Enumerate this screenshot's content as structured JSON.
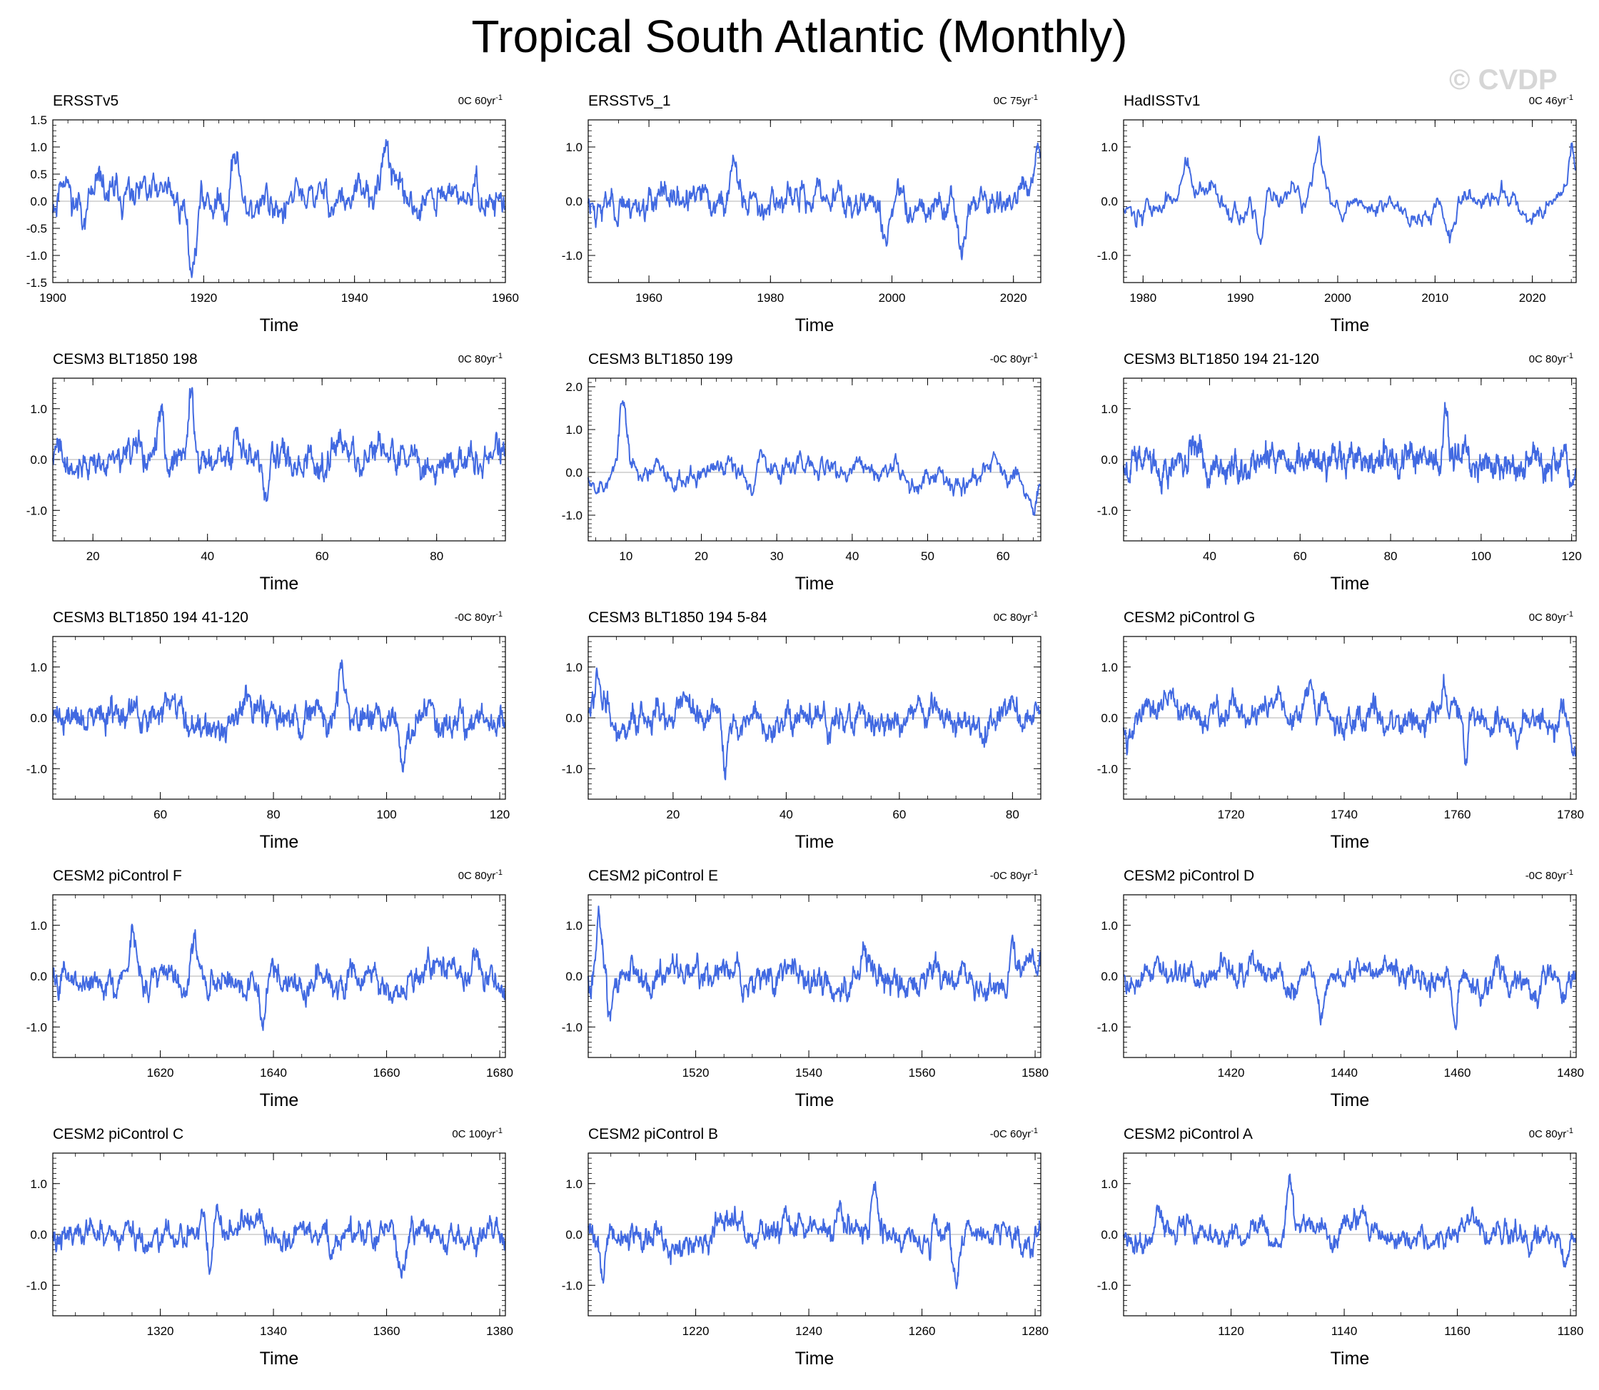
{
  "title": "Tropical South Atlantic (Monthly)",
  "watermark": "© CVDP",
  "line_color": "#4169e1",
  "chart_data": [
    {
      "type": "line",
      "title": "ERSSTv5",
      "note": "0C 60yr",
      "note_sup": "-1",
      "xlabel": "Time",
      "xlim": [
        1900,
        1960
      ],
      "xticks": [
        1900,
        1920,
        1940,
        1960
      ],
      "xtick_labels": [
        "1900",
        "1920",
        "1940",
        "1960"
      ],
      "ylim": [
        -1.5,
        1.5
      ],
      "yticks": [
        1.5,
        1.0,
        0.5,
        0.0,
        -0.5,
        -1.0,
        -1.5
      ],
      "ytick_labels": [
        "1.5",
        "1.0",
        "0.5",
        "0.0",
        "-0.5",
        "-1.0",
        "-1.5"
      ],
      "seed": 11,
      "amp": 0.45,
      "rho": 0.9,
      "bumps": [
        [
          1918.5,
          -1.4
        ],
        [
          1924,
          1.2
        ],
        [
          1944.3,
          1.35
        ],
        [
          1901.5,
          0.8
        ]
      ]
    },
    {
      "type": "line",
      "title": "ERSSTv5_1",
      "note": "0C 75yr",
      "note_sup": "-1",
      "xlabel": "Time",
      "xlim": [
        1950,
        2024.5
      ],
      "xticks": [
        1960,
        1980,
        2000,
        2020
      ],
      "xtick_labels": [
        "1960",
        "1980",
        "2000",
        "2020"
      ],
      "ylim": [
        -1.5,
        1.5
      ],
      "yticks": [
        1.0,
        0.0,
        -1.0
      ],
      "ytick_labels": [
        "1.0",
        "0.0",
        "-1.0"
      ],
      "seed": 23,
      "amp": 0.35,
      "rho": 0.9,
      "bumps": [
        [
          1974,
          0.95
        ],
        [
          2024,
          1.0
        ],
        [
          1999,
          -1.0
        ],
        [
          2011.5,
          -0.95
        ]
      ]
    },
    {
      "type": "line",
      "title": "HadISSTv1",
      "note": "0C 46yr",
      "note_sup": "-1",
      "xlabel": "Time",
      "xlim": [
        1978,
        2024.5
      ],
      "xticks": [
        1980,
        1990,
        2000,
        2010,
        2020
      ],
      "xtick_labels": [
        "1980",
        "1990",
        "2000",
        "2010",
        "2020"
      ],
      "ylim": [
        -1.5,
        1.5
      ],
      "yticks": [
        1.0,
        0.0,
        -1.0
      ],
      "ytick_labels": [
        "1.0",
        "0.0",
        "-1.0"
      ],
      "seed": 37,
      "amp": 0.3,
      "rho": 0.93,
      "bumps": [
        [
          1998,
          0.8
        ],
        [
          1992,
          -0.9
        ],
        [
          2011.5,
          -0.9
        ],
        [
          2024,
          1.0
        ],
        [
          1984.5,
          0.7
        ]
      ]
    },
    {
      "type": "line",
      "title": "CESM3 BLT1850 198",
      "note": "0C 80yr",
      "note_sup": "-1",
      "xlabel": "Time",
      "xlim": [
        13,
        92
      ],
      "xticks": [
        20,
        40,
        60,
        80
      ],
      "xtick_labels": [
        "20",
        "40",
        "60",
        "80"
      ],
      "ylim": [
        -1.6,
        1.6
      ],
      "yticks": [
        1.0,
        0.0,
        -1.0
      ],
      "ytick_labels": [
        "1.0",
        "0.0",
        "-1.0"
      ],
      "seed": 41,
      "amp": 0.42,
      "rho": 0.9,
      "bumps": [
        [
          37.2,
          1.5
        ],
        [
          32,
          1.2
        ],
        [
          50,
          -1.0
        ]
      ]
    },
    {
      "type": "line",
      "title": "CESM3 BLT1850 199",
      "note": "-0C 80yr",
      "note_sup": "-1",
      "xlabel": "Time",
      "xlim": [
        5,
        65
      ],
      "xticks": [
        10,
        20,
        30,
        40,
        50,
        60
      ],
      "xtick_labels": [
        "10",
        "20",
        "30",
        "40",
        "50",
        "60"
      ],
      "ylim": [
        -1.6,
        2.2
      ],
      "yticks": [
        2.0,
        1.0,
        0.0,
        -1.0
      ],
      "ytick_labels": [
        "2.0",
        "1.0",
        "0.0",
        "-1.0"
      ],
      "seed": 53,
      "amp": 0.35,
      "rho": 0.93,
      "bumps": [
        [
          9.6,
          1.8
        ],
        [
          64,
          -1.0
        ],
        [
          28,
          0.9
        ]
      ]
    },
    {
      "type": "line",
      "title": "CESM3 BLT1850 194 21-120",
      "note": "0C 80yr",
      "note_sup": "-1",
      "xlabel": "Time",
      "xlim": [
        21,
        121
      ],
      "xticks": [
        40,
        60,
        80,
        100,
        120
      ],
      "xtick_labels": [
        "40",
        "60",
        "80",
        "100",
        "120"
      ],
      "ylim": [
        -1.6,
        1.6
      ],
      "yticks": [
        1.0,
        0.0,
        -1.0
      ],
      "ytick_labels": [
        "1.0",
        "0.0",
        "-1.0"
      ],
      "seed": 67,
      "amp": 0.42,
      "rho": 0.88,
      "bumps": [
        [
          92,
          1.1
        ],
        [
          120,
          -0.9
        ]
      ]
    },
    {
      "type": "line",
      "title": "CESM3 BLT1850 194 41-120",
      "note": "-0C 80yr",
      "note_sup": "-1",
      "xlabel": "Time",
      "xlim": [
        41,
        121
      ],
      "xticks": [
        60,
        80,
        100,
        120
      ],
      "xtick_labels": [
        "60",
        "80",
        "100",
        "120"
      ],
      "ylim": [
        -1.6,
        1.6
      ],
      "yticks": [
        1.0,
        0.0,
        -1.0
      ],
      "ytick_labels": [
        "1.0",
        "0.0",
        "-1.0"
      ],
      "seed": 71,
      "amp": 0.42,
      "rho": 0.88,
      "bumps": [
        [
          92,
          1.15
        ],
        [
          103,
          -1.0
        ]
      ]
    },
    {
      "type": "line",
      "title": "CESM3 BLT1850 194 5-84",
      "note": "0C 80yr",
      "note_sup": "-1",
      "xlabel": "Time",
      "xlim": [
        5,
        85
      ],
      "xticks": [
        20,
        40,
        60,
        80
      ],
      "xtick_labels": [
        "20",
        "40",
        "60",
        "80"
      ],
      "ylim": [
        -1.6,
        1.6
      ],
      "yticks": [
        1.0,
        0.0,
        -1.0
      ],
      "ytick_labels": [
        "1.0",
        "0.0",
        "-1.0"
      ],
      "seed": 83,
      "amp": 0.4,
      "rho": 0.9,
      "bumps": [
        [
          6.5,
          1.05
        ],
        [
          29,
          -1.05
        ]
      ]
    },
    {
      "type": "line",
      "title": "CESM2 piControl G",
      "note": "0C 80yr",
      "note_sup": "-1",
      "xlabel": "Time",
      "xlim": [
        1701,
        1781
      ],
      "xticks": [
        1720,
        1740,
        1760,
        1780
      ],
      "xtick_labels": [
        "1720",
        "1740",
        "1760",
        "1780"
      ],
      "ylim": [
        -1.6,
        1.6
      ],
      "yticks": [
        1.0,
        0.0,
        -1.0
      ],
      "ytick_labels": [
        "1.0",
        "0.0",
        "-1.0"
      ],
      "seed": 97,
      "amp": 0.38,
      "rho": 0.93,
      "bumps": [
        [
          1757.5,
          1.0
        ],
        [
          1761.5,
          -1.1
        ],
        [
          1780.5,
          -0.9
        ]
      ]
    },
    {
      "type": "line",
      "title": "CESM2 piControl F",
      "note": "0C 80yr",
      "note_sup": "-1",
      "xlabel": "Time",
      "xlim": [
        1601,
        1681
      ],
      "xticks": [
        1620,
        1640,
        1660,
        1680
      ],
      "xtick_labels": [
        "1620",
        "1640",
        "1660",
        "1680"
      ],
      "ylim": [
        -1.6,
        1.6
      ],
      "yticks": [
        1.0,
        0.0,
        -1.0
      ],
      "ytick_labels": [
        "1.0",
        "0.0",
        "-1.0"
      ],
      "seed": 101,
      "amp": 0.38,
      "rho": 0.93,
      "bumps": [
        [
          1615,
          0.95
        ],
        [
          1626,
          0.95
        ],
        [
          1638,
          -0.9
        ]
      ]
    },
    {
      "type": "line",
      "title": "CESM2 piControl E",
      "note": "-0C 80yr",
      "note_sup": "-1",
      "xlabel": "Time",
      "xlim": [
        1501,
        1581
      ],
      "xticks": [
        1520,
        1540,
        1560,
        1580
      ],
      "xtick_labels": [
        "1520",
        "1540",
        "1560",
        "1580"
      ],
      "ylim": [
        -1.6,
        1.6
      ],
      "yticks": [
        1.0,
        0.0,
        -1.0
      ],
      "ytick_labels": [
        "1.0",
        "0.0",
        "-1.0"
      ],
      "seed": 113,
      "amp": 0.4,
      "rho": 0.93,
      "bumps": [
        [
          1503,
          1.35
        ],
        [
          1576,
          1.2
        ],
        [
          1505,
          -0.9
        ]
      ]
    },
    {
      "type": "line",
      "title": "CESM2 piControl D",
      "note": "-0C 80yr",
      "note_sup": "-1",
      "xlabel": "Time",
      "xlim": [
        1401,
        1481
      ],
      "xticks": [
        1420,
        1440,
        1460,
        1480
      ],
      "xtick_labels": [
        "1420",
        "1440",
        "1460",
        "1480"
      ],
      "ylim": [
        -1.6,
        1.6
      ],
      "yticks": [
        1.0,
        0.0,
        -1.0
      ],
      "ytick_labels": [
        "1.0",
        "0.0",
        "-1.0"
      ],
      "seed": 127,
      "amp": 0.33,
      "rho": 0.93,
      "bumps": [
        [
          1459.5,
          -1.2
        ],
        [
          1436,
          -0.95
        ]
      ]
    },
    {
      "type": "line",
      "title": "CESM2 piControl C",
      "note": "0C 100yr",
      "note_sup": "-1",
      "xlabel": "Time",
      "xlim": [
        1301,
        1381
      ],
      "xticks": [
        1320,
        1340,
        1360,
        1380
      ],
      "xtick_labels": [
        "1320",
        "1340",
        "1360",
        "1380"
      ],
      "ylim": [
        -1.6,
        1.6
      ],
      "yticks": [
        1.0,
        0.0,
        -1.0
      ],
      "ytick_labels": [
        "1.0",
        "0.0",
        "-1.0"
      ],
      "seed": 131,
      "amp": 0.35,
      "rho": 0.92,
      "bumps": [
        [
          1330,
          0.85
        ],
        [
          1329,
          -0.85
        ],
        [
          1362.5,
          -0.8
        ]
      ]
    },
    {
      "type": "line",
      "title": "CESM2 piControl B",
      "note": "-0C 60yr",
      "note_sup": "-1",
      "xlabel": "Time",
      "xlim": [
        1201,
        1281
      ],
      "xticks": [
        1220,
        1240,
        1260,
        1280
      ],
      "xtick_labels": [
        "1220",
        "1240",
        "1260",
        "1280"
      ],
      "ylim": [
        -1.6,
        1.6
      ],
      "yticks": [
        1.0,
        0.0,
        -1.0
      ],
      "ytick_labels": [
        "1.0",
        "0.0",
        "-1.0"
      ],
      "seed": 139,
      "amp": 0.36,
      "rho": 0.93,
      "bumps": [
        [
          1251.5,
          1.0
        ],
        [
          1203.5,
          -0.9
        ],
        [
          1266,
          -0.9
        ]
      ]
    },
    {
      "type": "line",
      "title": "CESM2 piControl A",
      "note": "0C 80yr",
      "note_sup": "-1",
      "xlabel": "Time",
      "xlim": [
        1101,
        1181
      ],
      "xticks": [
        1120,
        1140,
        1160,
        1180
      ],
      "xtick_labels": [
        "1120",
        "1140",
        "1160",
        "1180"
      ],
      "ylim": [
        -1.6,
        1.6
      ],
      "yticks": [
        1.0,
        0.0,
        -1.0
      ],
      "ytick_labels": [
        "1.0",
        "0.0",
        "-1.0"
      ],
      "seed": 149,
      "amp": 0.33,
      "rho": 0.93,
      "bumps": [
        [
          1130.3,
          1.1
        ],
        [
          1107,
          0.85
        ],
        [
          1179,
          -0.6
        ]
      ]
    }
  ]
}
